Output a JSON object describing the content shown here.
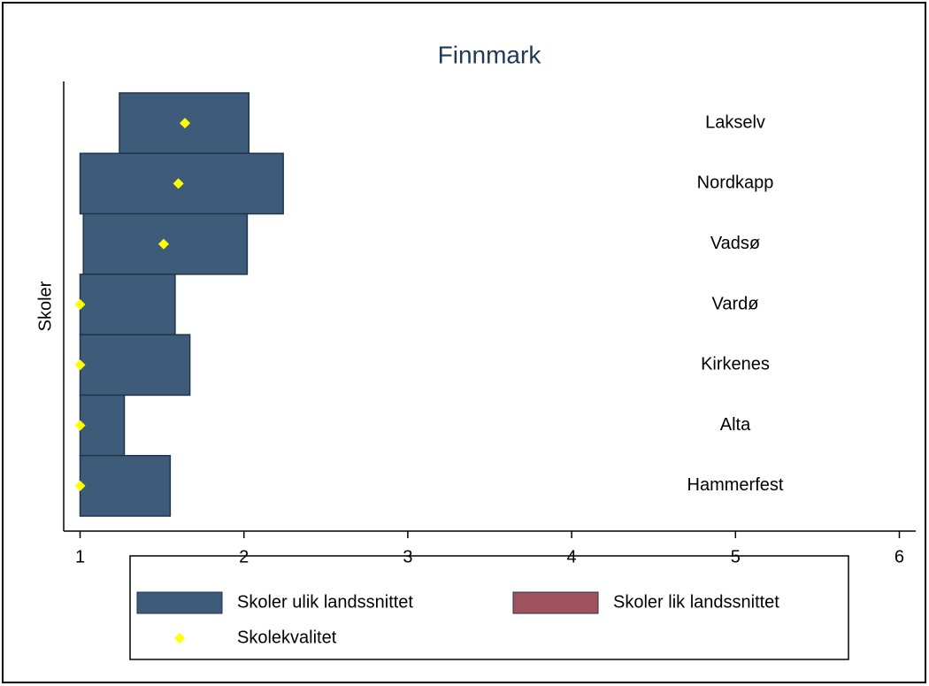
{
  "chart_data": {
    "type": "range_bar",
    "title": "Finnmark",
    "ylabel": "Skoler",
    "categories": [
      "Lakselv",
      "Nordkapp",
      "Vadsø",
      "Vardø",
      "Kirkenes",
      "Alta",
      "Hammerfest"
    ],
    "series": [
      {
        "name": "Skoler ulik landssnittet",
        "color": "#3e5c7a",
        "low": [
          1.24,
          1.0,
          1.02,
          1.0,
          1.0,
          1.0,
          1.0
        ],
        "high": [
          2.03,
          2.24,
          2.02,
          1.58,
          1.67,
          1.27,
          1.55
        ]
      },
      {
        "name": "Skoler lik landssnittet",
        "color": "#a0525d",
        "low": [
          null,
          null,
          null,
          null,
          null,
          null,
          null
        ],
        "high": [
          null,
          null,
          null,
          null,
          null,
          null,
          null
        ]
      },
      {
        "name": "Skolekvalitet",
        "color": "#ffff00",
        "values": [
          1.64,
          1.6,
          1.51,
          1.0,
          1.0,
          1.0,
          1.0
        ]
      }
    ],
    "xlim": [
      0.9,
      6.1
    ],
    "xticks": [
      1,
      2,
      3,
      4,
      5,
      6
    ]
  }
}
